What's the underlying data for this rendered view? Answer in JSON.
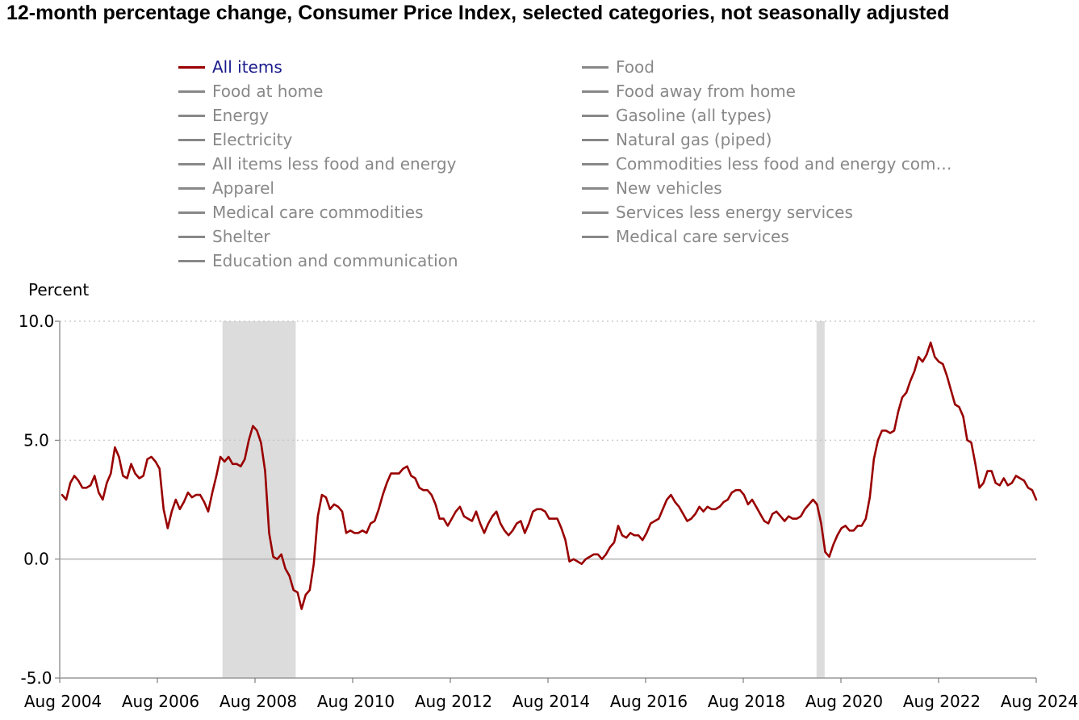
{
  "title": "12-month percentage change, Consumer Price Index, selected categories, not seasonally adjusted",
  "legend": [
    {
      "label": "All items",
      "active": true
    },
    {
      "label": "Food",
      "active": false
    },
    {
      "label": "Food at home",
      "active": false
    },
    {
      "label": "Food away from home",
      "active": false
    },
    {
      "label": "Energy",
      "active": false
    },
    {
      "label": "Gasoline (all types)",
      "active": false
    },
    {
      "label": "Electricity",
      "active": false
    },
    {
      "label": "Natural gas (piped)",
      "active": false
    },
    {
      "label": "All items less food and energy",
      "active": false
    },
    {
      "label": "Commodities less food and energy com…",
      "active": false
    },
    {
      "label": "Apparel",
      "active": false
    },
    {
      "label": "New vehicles",
      "active": false
    },
    {
      "label": "Medical care commodities",
      "active": false
    },
    {
      "label": "Services less energy services",
      "active": false
    },
    {
      "label": "Shelter",
      "active": false
    },
    {
      "label": "Medical care services",
      "active": false
    },
    {
      "label": "Education and communication",
      "active": false
    }
  ],
  "chart_data": {
    "type": "line",
    "title": "12-month percentage change, Consumer Price Index, selected categories, not seasonally adjusted",
    "ylabel": "Percent",
    "xlabel": "",
    "ylim": [
      -5.0,
      10.0
    ],
    "yticks": [
      "10.0",
      "5.0",
      "0.0",
      "-5.0"
    ],
    "xticks": [
      "Aug 2004",
      "Aug 2006",
      "Aug 2008",
      "Aug 2010",
      "Aug 2012",
      "Aug 2014",
      "Aug 2016",
      "Aug 2018",
      "Aug 2020",
      "Aug 2022",
      "Aug 2024"
    ],
    "x_start": "Aug 2004",
    "x_end": "Aug 2024",
    "grid": "horizontal dotted",
    "recessions": [
      [
        "Dec 2007",
        "Jun 2009"
      ],
      [
        "Feb 2020",
        "Apr 2020"
      ]
    ],
    "line_color": "#990000",
    "recession_color": "#dcdcdc",
    "series": [
      {
        "name": "All items",
        "values": [
          2.7,
          2.5,
          3.2,
          3.5,
          3.3,
          3.0,
          3.0,
          3.1,
          3.5,
          2.8,
          2.5,
          3.2,
          3.6,
          4.7,
          4.3,
          3.5,
          3.4,
          4.0,
          3.6,
          3.4,
          3.5,
          4.2,
          4.3,
          4.1,
          3.8,
          2.1,
          1.3,
          2.0,
          2.5,
          2.1,
          2.4,
          2.8,
          2.6,
          2.7,
          2.7,
          2.4,
          2.0,
          2.8,
          3.5,
          4.3,
          4.1,
          4.3,
          4.0,
          4.0,
          3.9,
          4.2,
          5.0,
          5.6,
          5.4,
          4.9,
          3.7,
          1.1,
          0.1,
          0.0,
          0.2,
          -0.4,
          -0.7,
          -1.3,
          -1.4,
          -2.1,
          -1.5,
          -1.3,
          -0.2,
          1.8,
          2.7,
          2.6,
          2.1,
          2.3,
          2.2,
          2.0,
          1.1,
          1.2,
          1.1,
          1.1,
          1.2,
          1.1,
          1.5,
          1.6,
          2.1,
          2.7,
          3.2,
          3.6,
          3.6,
          3.6,
          3.8,
          3.9,
          3.5,
          3.4,
          3.0,
          2.9,
          2.9,
          2.7,
          2.3,
          1.7,
          1.7,
          1.4,
          1.7,
          2.0,
          2.2,
          1.8,
          1.7,
          1.6,
          2.0,
          1.5,
          1.1,
          1.5,
          1.8,
          2.0,
          1.5,
          1.2,
          1.0,
          1.2,
          1.5,
          1.6,
          1.1,
          1.5,
          2.0,
          2.1,
          2.1,
          2.0,
          1.7,
          1.7,
          1.7,
          1.3,
          0.8,
          -0.1,
          0.0,
          -0.1,
          -0.2,
          0.0,
          0.1,
          0.2,
          0.2,
          0.0,
          0.2,
          0.5,
          0.7,
          1.4,
          1.0,
          0.9,
          1.1,
          1.0,
          1.0,
          0.8,
          1.1,
          1.5,
          1.6,
          1.7,
          2.1,
          2.5,
          2.7,
          2.4,
          2.2,
          1.9,
          1.6,
          1.7,
          1.9,
          2.2,
          2.0,
          2.2,
          2.1,
          2.1,
          2.2,
          2.4,
          2.5,
          2.8,
          2.9,
          2.9,
          2.7,
          2.3,
          2.5,
          2.2,
          1.9,
          1.6,
          1.5,
          1.9,
          2.0,
          1.8,
          1.6,
          1.8,
          1.7,
          1.7,
          1.8,
          2.1,
          2.3,
          2.5,
          2.3,
          1.5,
          0.3,
          0.1,
          0.6,
          1.0,
          1.3,
          1.4,
          1.2,
          1.2,
          1.4,
          1.4,
          1.7,
          2.6,
          4.2,
          5.0,
          5.4,
          5.4,
          5.3,
          5.4,
          6.2,
          6.8,
          7.0,
          7.5,
          7.9,
          8.5,
          8.3,
          8.6,
          9.1,
          8.5,
          8.3,
          8.2,
          7.7,
          7.1,
          6.5,
          6.4,
          6.0,
          5.0,
          4.9,
          4.0,
          3.0,
          3.2,
          3.7,
          3.7,
          3.2,
          3.1,
          3.4,
          3.1,
          3.2,
          3.5,
          3.4,
          3.3,
          3.0,
          2.9,
          2.5
        ]
      }
    ]
  }
}
